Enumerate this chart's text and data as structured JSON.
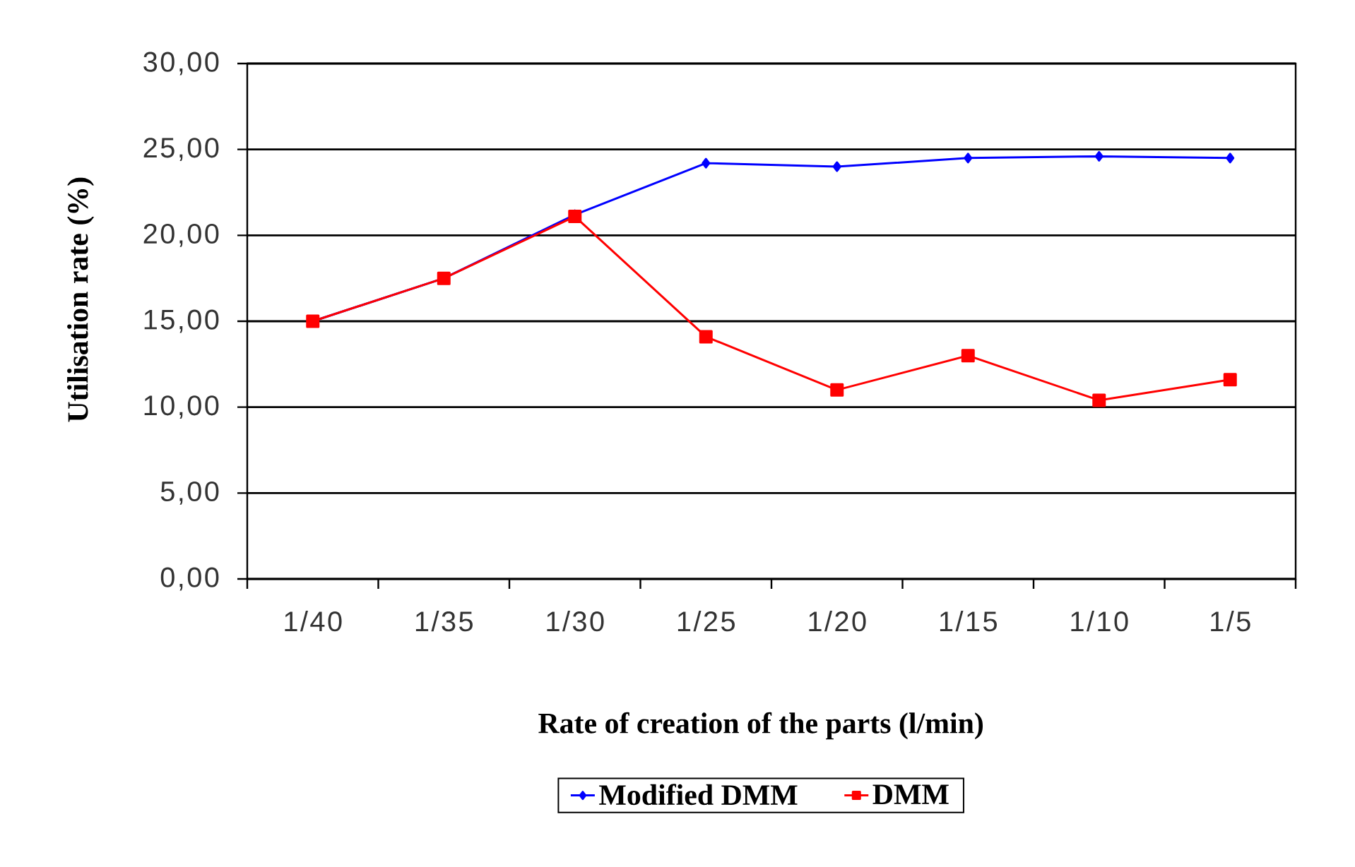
{
  "chart_data": {
    "type": "line",
    "xlabel": "Rate of creation of the parts (l/min)",
    "ylabel": "Utilisation rate (%)",
    "categories": [
      "1/40",
      "1/35",
      "1/30",
      "1/25",
      "1/20",
      "1/15",
      "1/10",
      "1/5"
    ],
    "series": [
      {
        "name": "Modified DMM",
        "color": "#0000ff",
        "marker": "diamond",
        "values": [
          15.0,
          17.5,
          21.2,
          24.2,
          24.0,
          24.5,
          24.6,
          24.5
        ]
      },
      {
        "name": "DMM",
        "color": "#ff0000",
        "marker": "square",
        "values": [
          15.0,
          17.5,
          21.1,
          14.1,
          11.0,
          13.0,
          10.4,
          11.6
        ]
      }
    ],
    "ylim": [
      0,
      30
    ],
    "yticks": [
      {
        "value": 0,
        "label": "0,00"
      },
      {
        "value": 5,
        "label": "5,00"
      },
      {
        "value": 10,
        "label": "10,00"
      },
      {
        "value": 15,
        "label": "15,00"
      },
      {
        "value": 20,
        "label": "20,00"
      },
      {
        "value": 25,
        "label": "25,00"
      },
      {
        "value": 30,
        "label": "30,00"
      }
    ],
    "grid": "y",
    "legend": "bottom"
  }
}
